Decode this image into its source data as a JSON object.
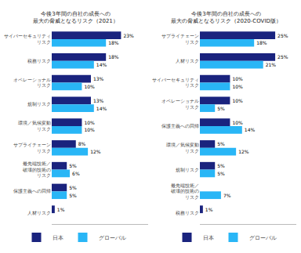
{
  "chart_data": [
    {
      "type": "bar",
      "orientation": "horizontal",
      "title": "今後3年間の自社の成長への\n最大の脅威となるリスク（2021）",
      "categories": [
        "サイバーセキュリティ\nリスク",
        "税務リスク",
        "オペレーショナル\nリスク",
        "規制リスク",
        "環境／気候変動\nリスク",
        "サプライチェーン\nリスク",
        "最先端技術／\n破壊的技術の\nリスク",
        "保護主義への回帰",
        "人材リスク"
      ],
      "series": [
        {
          "name": "日本",
          "color": "#1a237e",
          "values": [
            23,
            18,
            13,
            13,
            10,
            8,
            5,
            5,
            1
          ],
          "value_labels": [
            "23%",
            "18%",
            "13%",
            "13%",
            "10%",
            "8%",
            "5%",
            "5%",
            "1%"
          ]
        },
        {
          "name": "グローバル",
          "color": "#29b6f6",
          "values": [
            18,
            14,
            10,
            14,
            10,
            12,
            6,
            5,
            0
          ],
          "value_labels": [
            "18%",
            "14%",
            "10%",
            "14%",
            "10%",
            "12%",
            "6%",
            "5%",
            null
          ]
        }
      ],
      "xlim": [
        0,
        32
      ],
      "data_labels": true,
      "tick_labels": "y",
      "grid": false,
      "legend": "bottom"
    },
    {
      "type": "bar",
      "orientation": "horizontal",
      "title": "今後3年間の自社の成長への\n最大の脅威となるリスク（2020-COVID版）",
      "categories": [
        "サプライチェーン\nリスク",
        "人材リスク",
        "サイバーセキュリティ\nリスク",
        "オペレーショナル\nリスク",
        "保護主義への回帰",
        "環境／気候変動\nリスク",
        "規制リスク",
        "最先端技術／\n破壊的技術の\nリスク",
        "税務リスク"
      ],
      "series": [
        {
          "name": "日本",
          "color": "#1a237e",
          "values": [
            25,
            25,
            10,
            10,
            10,
            5,
            5,
            0,
            1
          ],
          "value_labels": [
            "25%",
            "25%",
            "10%",
            "10%",
            "10%",
            "5%",
            "5%",
            null,
            "1%"
          ]
        },
        {
          "name": "グローバル",
          "color": "#29b6f6",
          "values": [
            18,
            21,
            10,
            5,
            14,
            12,
            5,
            7,
            0
          ],
          "value_labels": [
            "18%",
            "21%",
            "10%",
            "5%",
            "14%",
            "12%",
            "5%",
            "7%",
            null
          ]
        }
      ],
      "xlim": [
        0,
        32
      ],
      "data_labels": true,
      "tick_labels": "y",
      "grid": false,
      "legend": "bottom"
    }
  ]
}
